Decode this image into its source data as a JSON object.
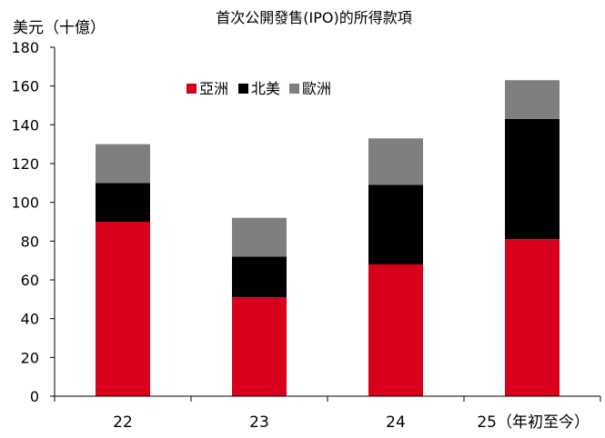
{
  "chart_data": {
    "type": "bar",
    "stacked": true,
    "title": "首次公開發售(IPO)的所得款項",
    "ylabel": "美元（十億）",
    "xlabel": "",
    "categories": [
      "22",
      "23",
      "24",
      "25（年初至今）"
    ],
    "series": [
      {
        "name": "亞洲",
        "color": "#d9001b",
        "values": [
          90,
          51,
          68,
          81
        ]
      },
      {
        "name": "北美",
        "color": "#000000",
        "values": [
          20,
          21,
          41,
          62
        ]
      },
      {
        "name": "歐洲",
        "color": "#7f7f7f",
        "values": [
          20,
          20,
          24,
          20
        ]
      }
    ],
    "ylim": [
      0,
      180
    ],
    "yticks": [
      0,
      20,
      40,
      60,
      80,
      100,
      120,
      140,
      160,
      180
    ],
    "grid": false,
    "legend_position": "top-left inside plot"
  }
}
